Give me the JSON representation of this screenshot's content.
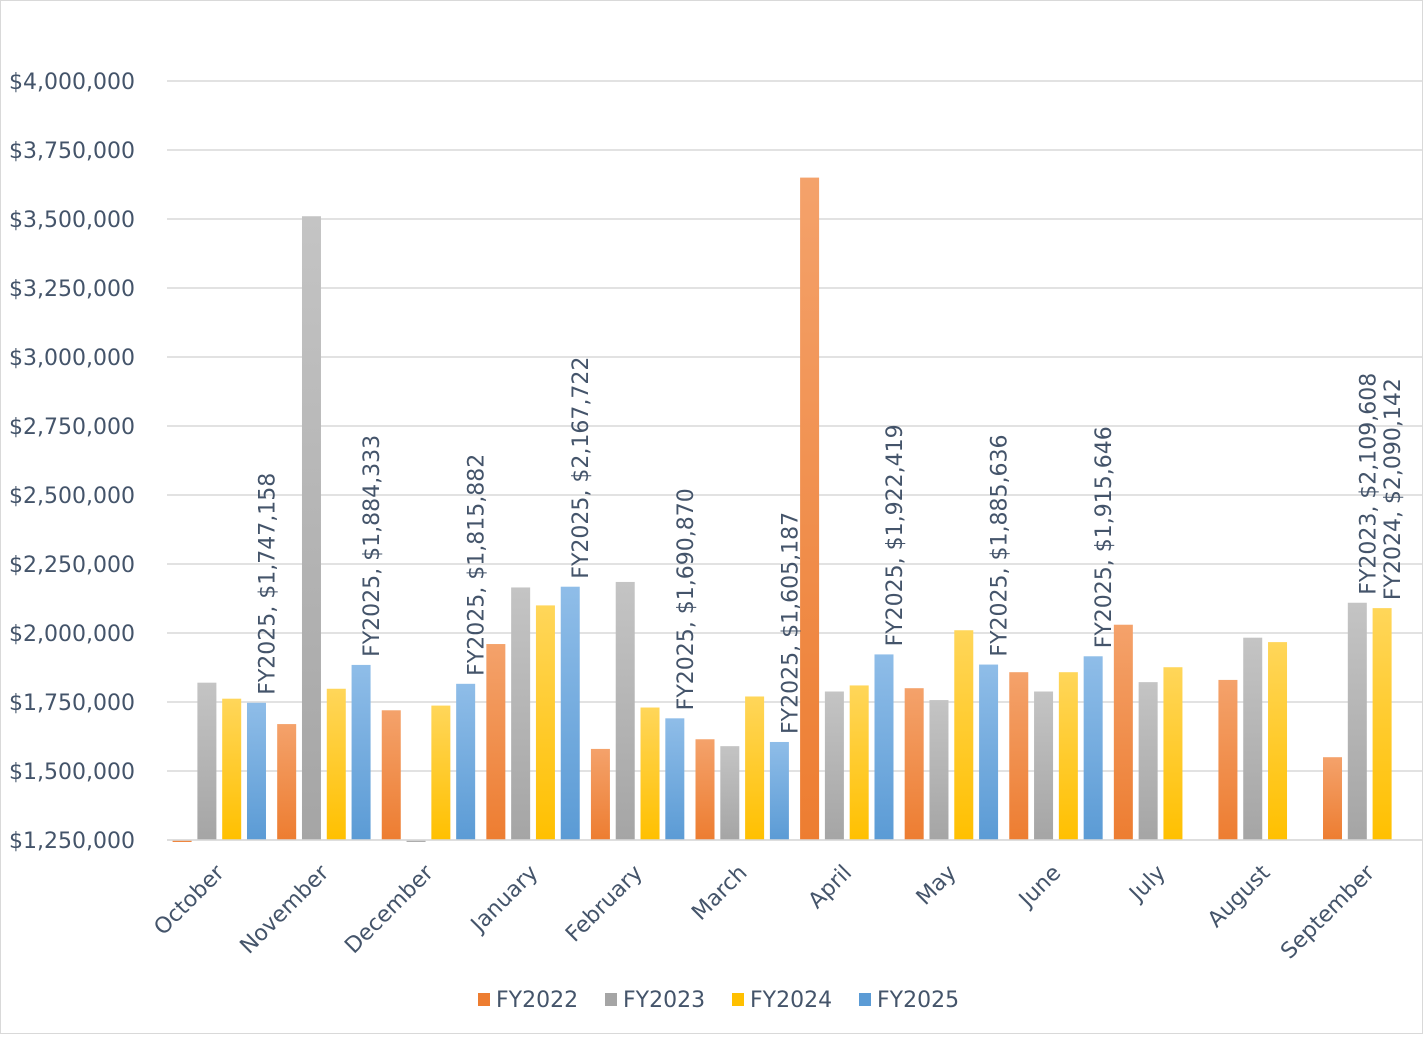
{
  "chart_data": {
    "type": "bar",
    "title": "",
    "xlabel": "",
    "ylabel": "",
    "ylim": [
      1250000,
      4000000
    ],
    "y_ticks": [
      1250000,
      1500000,
      1750000,
      2000000,
      2250000,
      2500000,
      2750000,
      3000000,
      3250000,
      3500000,
      3750000,
      4000000
    ],
    "y_tick_labels": [
      "$1,250,000",
      "$1,500,000",
      "$1,750,000",
      "$2,000,000",
      "$2,250,000",
      "$2,500,000",
      "$2,750,000",
      "$3,000,000",
      "$3,250,000",
      "$3,500,000",
      "$3,750,000",
      "$4,000,000"
    ],
    "grid": true,
    "legend_position": "bottom",
    "categories": [
      "October",
      "November",
      "December",
      "January",
      "February",
      "March",
      "April",
      "May",
      "June",
      "July",
      "August",
      "September"
    ],
    "series": [
      {
        "name": "FY2022",
        "color": "#ed7d31",
        "colorLight": "#f4a26b",
        "values": [
          1240000,
          1670000,
          1720000,
          1960000,
          1580000,
          1615000,
          3650000,
          1800000,
          1858000,
          2030000,
          1830000,
          1550000
        ]
      },
      {
        "name": "FY2023",
        "color": "#a5a5a5",
        "colorLight": "#c4c4c4",
        "values": [
          1820000,
          3510000,
          1245000,
          2165000,
          2185000,
          1590000,
          1788000,
          1757000,
          1788000,
          1822000,
          1983000,
          2109608
        ]
      },
      {
        "name": "FY2024",
        "color": "#ffc000",
        "colorLight": "#ffd65a",
        "values": [
          1762000,
          1798000,
          1737000,
          2100000,
          1730000,
          1770000,
          1810000,
          2010000,
          1858000,
          1876000,
          1967000,
          2090142
        ]
      },
      {
        "name": "FY2025",
        "color": "#5b9bd5",
        "colorLight": "#8fbde8",
        "values": [
          1747158,
          1884333,
          1815882,
          2167722,
          1690870,
          1605187,
          1922419,
          1885636,
          1915646,
          null,
          null,
          null
        ]
      }
    ],
    "data_labels": [
      {
        "series": 3,
        "category": 0,
        "text": "FY2025, $1,747,158"
      },
      {
        "series": 3,
        "category": 1,
        "text": "FY2025, $1,884,333"
      },
      {
        "series": 3,
        "category": 2,
        "text": "FY2025, $1,815,882"
      },
      {
        "series": 3,
        "category": 3,
        "text": "FY2025, $2,167,722"
      },
      {
        "series": 3,
        "category": 4,
        "text": "FY2025, $1,690,870"
      },
      {
        "series": 3,
        "category": 5,
        "text": "FY2025, $1,605,187"
      },
      {
        "series": 3,
        "category": 6,
        "text": "FY2025, $1,922,419"
      },
      {
        "series": 3,
        "category": 7,
        "text": "FY2025, $1,885,636"
      },
      {
        "series": 3,
        "category": 8,
        "text": "FY2025, $1,915,646"
      },
      {
        "series": 1,
        "category": 11,
        "text": "FY2023, $2,109,608"
      },
      {
        "series": 2,
        "category": 11,
        "text": "FY2024, $2,090,142"
      }
    ]
  }
}
